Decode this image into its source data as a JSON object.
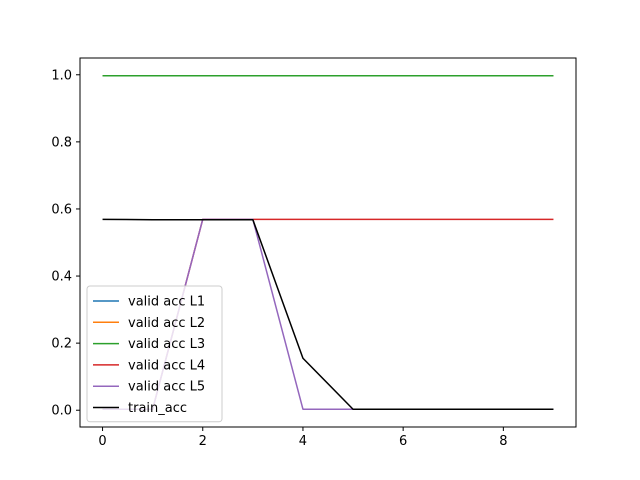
{
  "chart_data": {
    "type": "line",
    "title": "",
    "xlabel": "",
    "ylabel": "",
    "xlim": [
      -0.45,
      9.45
    ],
    "ylim": [
      -0.05,
      1.05
    ],
    "xticks": [
      0,
      2,
      4,
      6,
      8
    ],
    "yticks": [
      0.0,
      0.2,
      0.4,
      0.6,
      0.8,
      1.0
    ],
    "x": [
      0,
      1,
      2,
      3,
      4,
      5,
      6,
      7,
      8,
      9
    ],
    "grid": false,
    "legend_position": "lower-left",
    "series": [
      {
        "name": "valid acc L1",
        "color": "#1f77b4",
        "values": [
          0.997,
          0.997,
          0.997,
          0.997,
          0.997,
          0.997,
          0.997,
          0.997,
          0.997,
          0.997
        ]
      },
      {
        "name": "valid acc L2",
        "color": "#ff7f0e",
        "values": [
          0.997,
          0.997,
          0.997,
          0.997,
          0.997,
          0.997,
          0.997,
          0.997,
          0.997,
          0.997
        ]
      },
      {
        "name": "valid acc L3",
        "color": "#2ca02c",
        "values": [
          0.997,
          0.997,
          0.997,
          0.997,
          0.997,
          0.997,
          0.997,
          0.997,
          0.997,
          0.997
        ]
      },
      {
        "name": "valid acc L4",
        "color": "#d62728",
        "values": [
          0.003,
          0.003,
          0.569,
          0.569,
          0.569,
          0.569,
          0.569,
          0.569,
          0.569,
          0.569
        ]
      },
      {
        "name": "valid acc L5",
        "color": "#9467bd",
        "values": [
          0.003,
          0.003,
          0.569,
          0.569,
          0.003,
          0.003,
          0.003,
          0.003,
          0.003,
          0.003
        ]
      },
      {
        "name": "train_acc",
        "color": "#000000",
        "values": [
          0.569,
          0.568,
          0.568,
          0.568,
          0.155,
          0.003,
          0.003,
          0.003,
          0.003,
          0.003
        ]
      }
    ]
  }
}
